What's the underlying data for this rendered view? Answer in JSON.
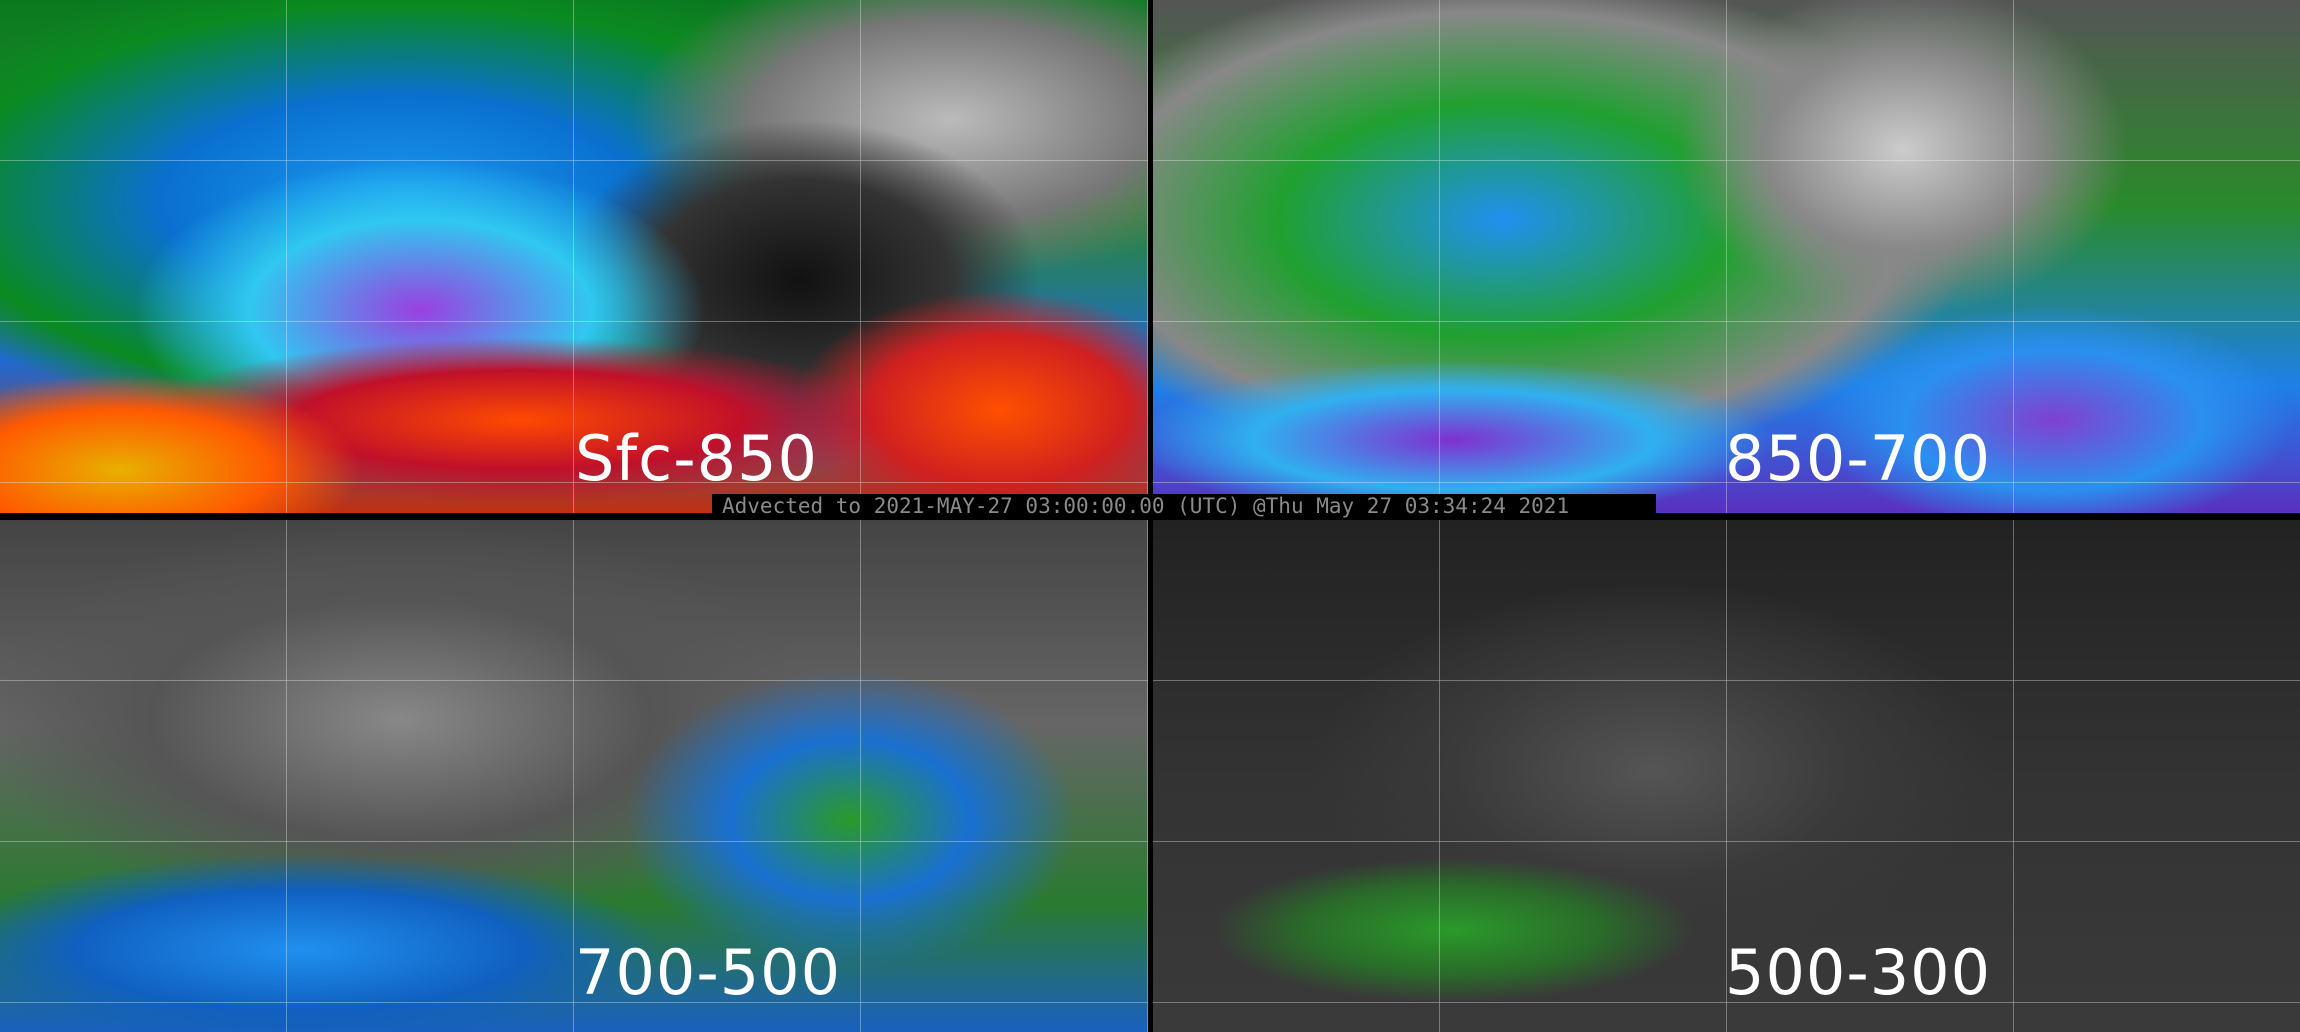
{
  "panels": [
    {
      "label": "Sfc-850"
    },
    {
      "label": "850-700"
    },
    {
      "label": "700-500"
    },
    {
      "label": "500-300"
    }
  ],
  "banner": "Advected to 2021-MAY-27 03:00:00.00 (UTC) @Thu May 27 03:34:24 2021"
}
